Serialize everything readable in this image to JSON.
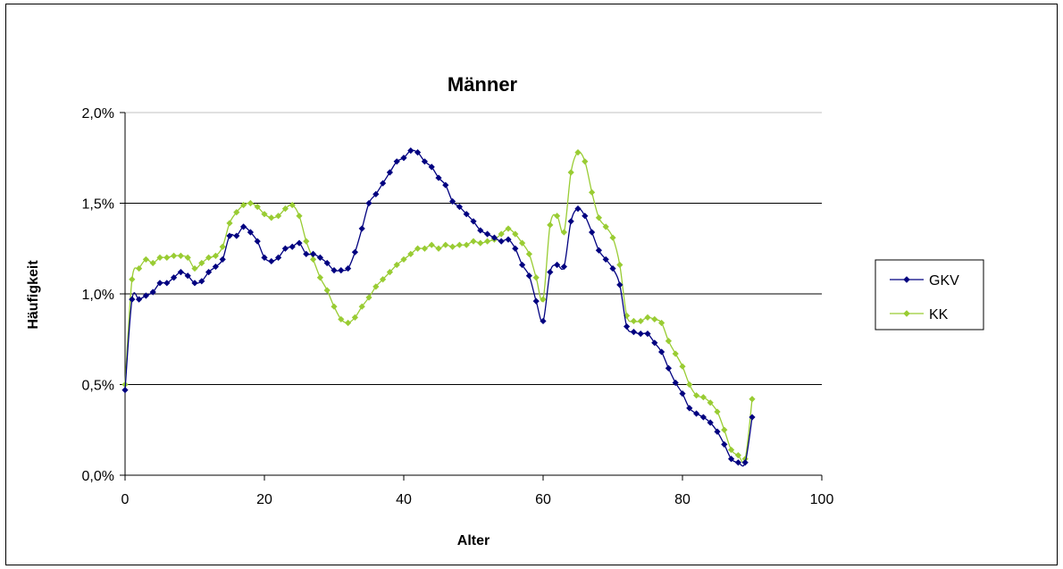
{
  "chart_data": {
    "type": "line",
    "title": "Männer",
    "xlabel": "Alter",
    "ylabel": "Häufigkeit",
    "xlim": [
      0,
      100
    ],
    "ylim": [
      0,
      2.0
    ],
    "x_ticks": [
      "0",
      "20",
      "40",
      "60",
      "80",
      "100"
    ],
    "y_ticks": [
      "0,0%",
      "0,5%",
      "1,0%",
      "1,5%",
      "2,0%"
    ],
    "grid": "horizontal",
    "legend": "right",
    "x": [
      0,
      1,
      2,
      3,
      4,
      5,
      6,
      7,
      8,
      9,
      10,
      11,
      12,
      13,
      14,
      15,
      16,
      17,
      18,
      19,
      20,
      21,
      22,
      23,
      24,
      25,
      26,
      27,
      28,
      29,
      30,
      31,
      32,
      33,
      34,
      35,
      36,
      37,
      38,
      39,
      40,
      41,
      42,
      43,
      44,
      45,
      46,
      47,
      48,
      49,
      50,
      51,
      52,
      53,
      54,
      55,
      56,
      57,
      58,
      59,
      60,
      61,
      62,
      63,
      64,
      65,
      66,
      67,
      68,
      69,
      70,
      71,
      72,
      73,
      74,
      75,
      76,
      77,
      78,
      79,
      80,
      81,
      82,
      83,
      84,
      85,
      86,
      87,
      88,
      89,
      90
    ],
    "series": [
      {
        "name": "GKV",
        "color": "#000080",
        "values": [
          0.47,
          0.97,
          0.97,
          0.99,
          1.01,
          1.06,
          1.06,
          1.09,
          1.12,
          1.1,
          1.06,
          1.07,
          1.12,
          1.15,
          1.19,
          1.32,
          1.32,
          1.37,
          1.34,
          1.29,
          1.2,
          1.18,
          1.2,
          1.25,
          1.26,
          1.28,
          1.22,
          1.22,
          1.2,
          1.17,
          1.13,
          1.13,
          1.14,
          1.23,
          1.36,
          1.5,
          1.55,
          1.61,
          1.67,
          1.73,
          1.75,
          1.79,
          1.78,
          1.73,
          1.7,
          1.64,
          1.6,
          1.51,
          1.48,
          1.44,
          1.4,
          1.35,
          1.33,
          1.31,
          1.29,
          1.3,
          1.25,
          1.16,
          1.1,
          0.96,
          0.85,
          1.12,
          1.16,
          1.15,
          1.4,
          1.47,
          1.43,
          1.34,
          1.24,
          1.19,
          1.14,
          1.05,
          0.82,
          0.79,
          0.78,
          0.78,
          0.73,
          0.68,
          0.59,
          0.51,
          0.45,
          0.37,
          0.34,
          0.32,
          0.29,
          0.24,
          0.17,
          0.09,
          0.07,
          0.07,
          0.32
        ]
      },
      {
        "name": "KK",
        "color": "#99CC33",
        "values": [
          0.5,
          1.08,
          1.14,
          1.19,
          1.17,
          1.2,
          1.2,
          1.21,
          1.21,
          1.2,
          1.14,
          1.17,
          1.2,
          1.21,
          1.26,
          1.39,
          1.45,
          1.49,
          1.5,
          1.48,
          1.44,
          1.42,
          1.43,
          1.47,
          1.49,
          1.43,
          1.29,
          1.19,
          1.09,
          1.02,
          0.93,
          0.86,
          0.84,
          0.87,
          0.93,
          0.98,
          1.04,
          1.08,
          1.12,
          1.16,
          1.19,
          1.22,
          1.25,
          1.25,
          1.27,
          1.25,
          1.27,
          1.26,
          1.27,
          1.27,
          1.29,
          1.28,
          1.29,
          1.3,
          1.33,
          1.36,
          1.33,
          1.28,
          1.22,
          1.09,
          0.97,
          1.38,
          1.43,
          1.34,
          1.67,
          1.78,
          1.73,
          1.56,
          1.42,
          1.37,
          1.31,
          1.16,
          0.88,
          0.85,
          0.85,
          0.87,
          0.86,
          0.84,
          0.74,
          0.67,
          0.6,
          0.5,
          0.44,
          0.43,
          0.4,
          0.35,
          0.25,
          0.14,
          0.11,
          0.09,
          0.42
        ]
      }
    ]
  }
}
